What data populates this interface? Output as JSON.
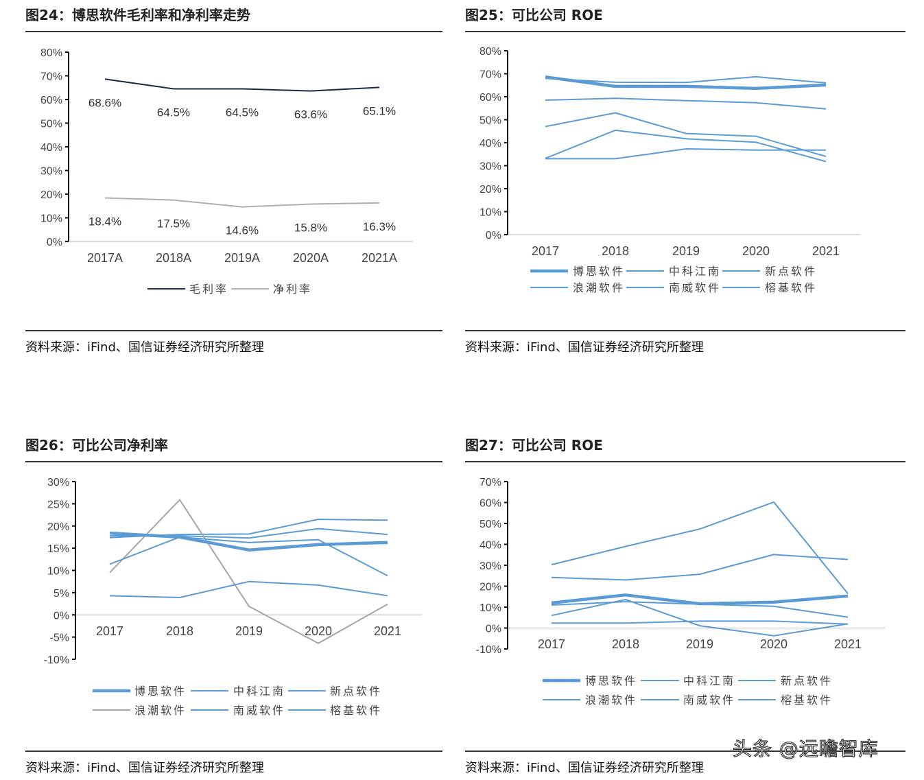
{
  "figures": [
    {
      "title": "图24：博思软件毛利率和净利率走势",
      "source": "资料来源：iFind、国信证券经济研究所整理"
    },
    {
      "title": "图25：可比公司 ROE",
      "source": "资料来源：iFind、国信证券经济研究所整理"
    },
    {
      "title": "图26：可比公司净利率",
      "source": "资料来源：iFind、国信证券经济研究所整理"
    },
    {
      "title": "图27：可比公司 ROE",
      "source": "资料来源：iFind、国信证券经济研究所整理"
    }
  ],
  "watermark": "头条 @远瞻智库",
  "chart_data": [
    {
      "type": "line",
      "categories": [
        "2017A",
        "2018A",
        "2019A",
        "2020A",
        "2021A"
      ],
      "ylim": [
        0,
        80
      ],
      "yticks": [
        "0%",
        "10%",
        "20%",
        "30%",
        "40%",
        "50%",
        "60%",
        "70%",
        "80%"
      ],
      "legend": "bottom",
      "data_labels": true,
      "series": [
        {
          "name": "毛利率",
          "values": [
            68.6,
            64.5,
            64.5,
            63.6,
            65.1
          ],
          "labels": [
            "68.6%",
            "64.5%",
            "64.5%",
            "63.6%",
            "65.1%"
          ],
          "color": "#1b2a44"
        },
        {
          "name": "净利率",
          "values": [
            18.4,
            17.5,
            14.6,
            15.8,
            16.3
          ],
          "labels": [
            "18.4%",
            "17.5%",
            "14.6%",
            "15.8%",
            "16.3%"
          ],
          "color": "#a9b0b8"
        }
      ]
    },
    {
      "type": "line",
      "categories": [
        "2017",
        "2018",
        "2019",
        "2020",
        "2021"
      ],
      "ylim": [
        0,
        80
      ],
      "yticks": [
        "0%",
        "10%",
        "20%",
        "30%",
        "40%",
        "50%",
        "60%",
        "70%",
        "80%"
      ],
      "legend": "bottom",
      "series": [
        {
          "name": "博思软件",
          "values": [
            68.6,
            64.5,
            64.5,
            63.6,
            65.1
          ],
          "color": "#5b9bd5",
          "bold": true
        },
        {
          "name": "中科江南",
          "values": [
            68.0,
            66.3,
            66.2,
            68.7,
            66.0
          ],
          "color": "#5b9bd5"
        },
        {
          "name": "新点软件",
          "values": [
            58.5,
            59.3,
            58.3,
            57.4,
            54.7
          ],
          "color": "#5b9bd5"
        },
        {
          "name": "浪潮软件",
          "values": [
            47.0,
            53.0,
            44.0,
            42.8,
            34.0
          ],
          "color": "#5b9bd5"
        },
        {
          "name": "南威软件",
          "values": [
            33.2,
            45.4,
            41.7,
            40.2,
            31.8
          ],
          "color": "#5b9bd5"
        },
        {
          "name": "榕基软件",
          "values": [
            33.0,
            33.0,
            37.3,
            36.8,
            36.8
          ],
          "color": "#5b9bd5"
        }
      ]
    },
    {
      "type": "line",
      "categories": [
        "2017",
        "2018",
        "2019",
        "2020",
        "2021"
      ],
      "ylim": [
        -10,
        30
      ],
      "yticks": [
        "-10%",
        "-5%",
        "0%",
        "5%",
        "10%",
        "15%",
        "20%",
        "25%",
        "30%"
      ],
      "legend": "bottom",
      "series": [
        {
          "name": "博思软件",
          "values": [
            18.4,
            17.5,
            14.6,
            15.8,
            16.3
          ],
          "color": "#5b9bd5",
          "bold": true
        },
        {
          "name": "中科江南",
          "values": [
            17.4,
            18.1,
            18.2,
            21.5,
            21.3
          ],
          "color": "#5b9bd5"
        },
        {
          "name": "新点软件",
          "values": [
            17.8,
            17.8,
            17.3,
            19.4,
            18.1
          ],
          "color": "#5b9bd5"
        },
        {
          "name": "浪潮软件",
          "values": [
            9.5,
            25.9,
            1.9,
            -6.4,
            2.4
          ],
          "color": "#a5a5a5"
        },
        {
          "name": "南威软件",
          "values": [
            11.4,
            17.5,
            16.3,
            16.9,
            8.8
          ],
          "color": "#5b9bd5"
        },
        {
          "name": "榕基软件",
          "values": [
            4.3,
            3.9,
            7.5,
            6.7,
            4.3
          ],
          "color": "#5b9bd5"
        }
      ]
    },
    {
      "type": "line",
      "categories": [
        "2017",
        "2018",
        "2019",
        "2020",
        "2021"
      ],
      "ylim": [
        -10,
        70
      ],
      "yticks": [
        "-10%",
        "0%",
        "10%",
        "20%",
        "30%",
        "40%",
        "50%",
        "60%",
        "70%"
      ],
      "legend": "bottom",
      "series": [
        {
          "name": "博思软件",
          "values": [
            12.0,
            15.8,
            11.6,
            12.4,
            15.3
          ],
          "color": "#5b9bd5",
          "bold": true
        },
        {
          "name": "中科江南",
          "values": [
            30.3,
            39.0,
            47.3,
            60.2,
            16.5
          ],
          "color": "#5b9bd5"
        },
        {
          "name": "新点软件",
          "values": [
            24.2,
            23.0,
            25.7,
            35.1,
            32.8
          ],
          "color": "#5b9bd5"
        },
        {
          "name": "浪潮软件",
          "values": [
            11.0,
            12.6,
            11.4,
            10.4,
            5.2
          ],
          "color": "#5b9bd5"
        },
        {
          "name": "南威软件",
          "values": [
            6.0,
            13.6,
            1.1,
            -3.7,
            2.0
          ],
          "color": "#5b9bd5"
        },
        {
          "name": "榕基软件",
          "values": [
            2.4,
            2.4,
            3.3,
            3.3,
            1.9
          ],
          "color": "#5b9bd5"
        }
      ]
    }
  ]
}
